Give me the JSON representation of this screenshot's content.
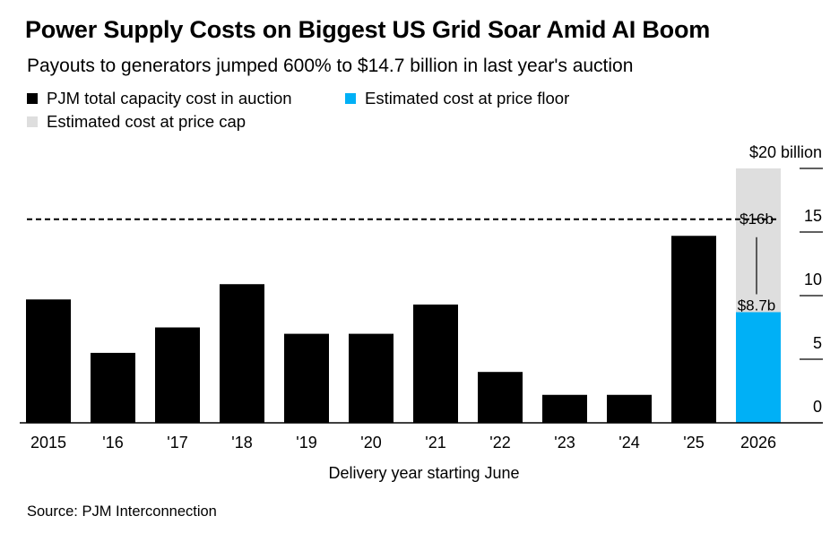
{
  "title": "Power Supply Costs on Biggest US Grid Soar Amid AI Boom",
  "subtitle": "Payouts to generators jumped 600% to $14.7 billion in last year's auction",
  "source": "Source: PJM Interconnection",
  "colors": {
    "total": "#000000",
    "floor": "#00b0f6",
    "cap": "#dedede"
  },
  "legend": [
    {
      "label": "PJM total capacity cost in auction",
      "color": "#000000"
    },
    {
      "label": "Estimated cost at price floor",
      "color": "#00b0f6"
    },
    {
      "label": "Estimated cost at price cap",
      "color": "#dedede"
    }
  ],
  "chart_data": {
    "type": "bar",
    "xlabel": "Delivery year starting June",
    "ylabel": "",
    "ylim": [
      0,
      20
    ],
    "yticks": [
      0,
      5,
      10,
      15,
      20
    ],
    "ytick_labels": [
      "0",
      "5",
      "10",
      "15",
      "$20 billion"
    ],
    "categories": [
      "2015",
      "'16",
      "'17",
      "'18",
      "'19",
      "'20",
      "'21",
      "'22",
      "'23",
      "'24",
      "'25",
      "2026"
    ],
    "series": [
      {
        "name": "PJM total capacity cost in auction",
        "values": [
          9.7,
          5.5,
          7.5,
          10.9,
          7.0,
          7.0,
          9.3,
          4.0,
          2.2,
          2.2,
          14.7,
          null
        ]
      },
      {
        "name": "Estimated cost at price floor",
        "values": [
          null,
          null,
          null,
          null,
          null,
          null,
          null,
          null,
          null,
          null,
          null,
          8.7
        ]
      },
      {
        "name": "Estimated cost at price cap",
        "values": [
          null,
          null,
          null,
          null,
          null,
          null,
          null,
          null,
          null,
          null,
          null,
          20.0
        ]
      }
    ],
    "reference_line": {
      "value": 16,
      "style": "dashed"
    },
    "annotations": [
      {
        "category": "2026",
        "value": 16,
        "text": "$16b"
      },
      {
        "category": "2026",
        "value": 8.7,
        "text": "$8.7b"
      }
    ],
    "grid": false
  }
}
